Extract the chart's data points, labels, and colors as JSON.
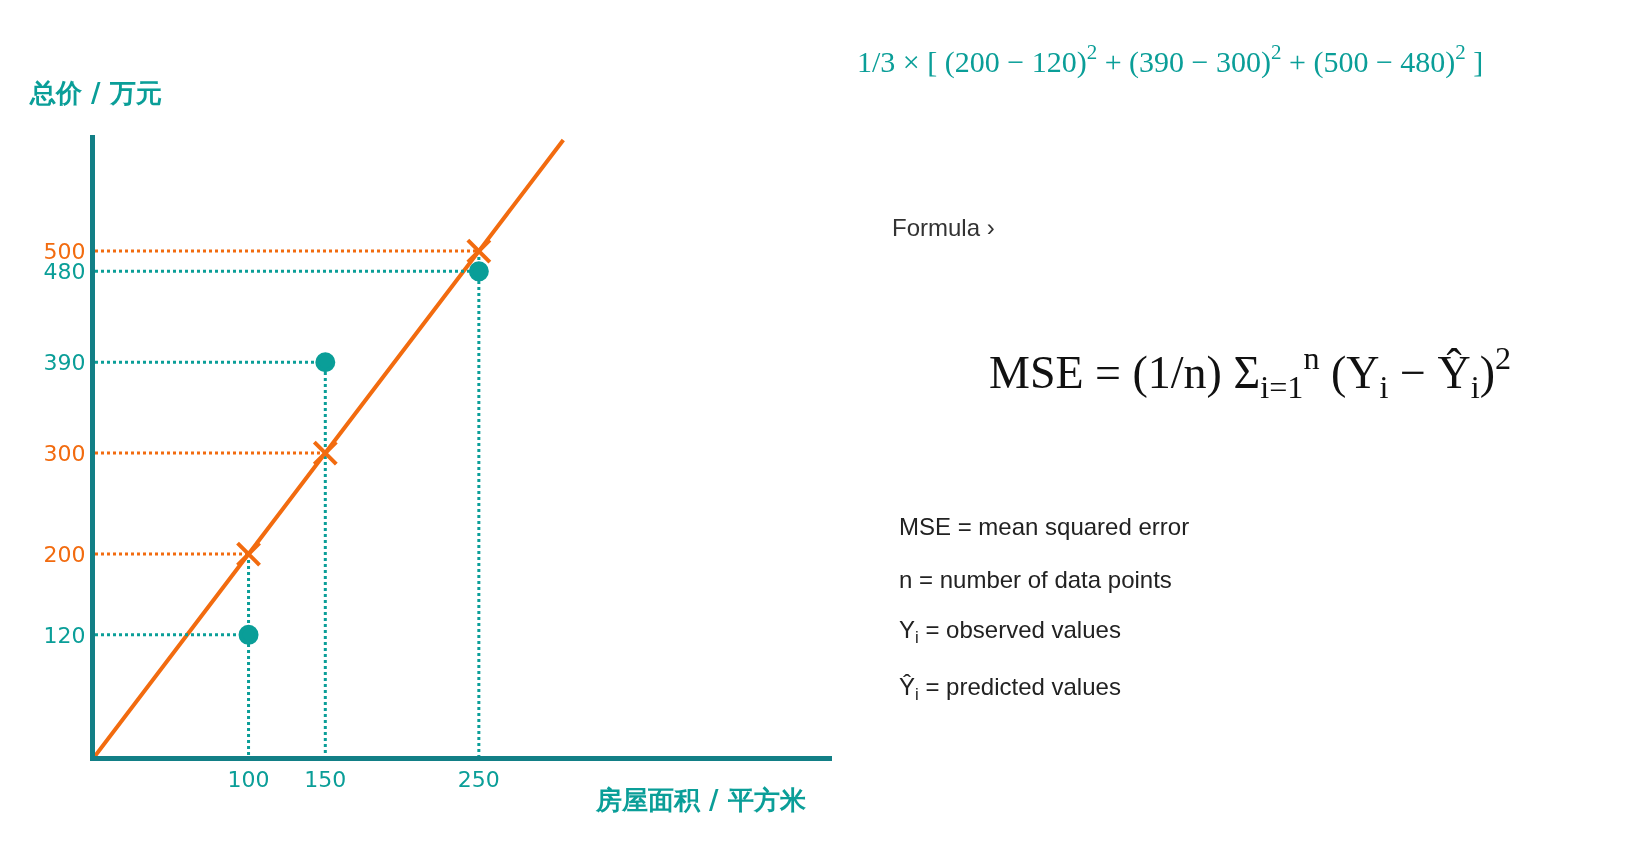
{
  "chart_data": {
    "type": "scatter",
    "xlabel": "房屋面积 / 平方米",
    "ylabel": "总价 / 万元",
    "xlim": [
      0,
      480
    ],
    "ylim": [
      0,
      615
    ],
    "xticks": [
      100,
      150,
      250
    ],
    "yticks": [
      120,
      200,
      300,
      390,
      480,
      500
    ],
    "grid": false,
    "series": [
      {
        "type": "line",
        "color": "#f26b0f",
        "line_style": "solid",
        "x": [
          0,
          100,
          150,
          250,
          305
        ],
        "values": [
          0,
          200,
          300,
          500,
          610
        ]
      },
      {
        "type": "line",
        "color": "#f26b0f",
        "line_style": "dotted",
        "x": [
          0,
          100,
          null,
          0,
          150,
          null,
          0,
          250
        ],
        "values": [
          200,
          200,
          null,
          300,
          300,
          null,
          500,
          500
        ]
      },
      {
        "type": "line",
        "color": "#0a9e98",
        "line_style": "dotted",
        "x": [
          0,
          100,
          null,
          100,
          100,
          null,
          0,
          150,
          150,
          null,
          0,
          250,
          null,
          250,
          250
        ],
        "values": [
          120,
          120,
          null,
          200,
          0,
          null,
          390,
          390,
          0,
          null,
          480,
          480,
          null,
          500,
          0
        ]
      },
      {
        "color": "#0a9e98",
        "marker": "circle",
        "x": [
          100,
          150,
          250
        ],
        "values": [
          120,
          390,
          480
        ]
      },
      {
        "color": "#f26b0f",
        "marker": "cross",
        "x": [
          100,
          150,
          250
        ],
        "values": [
          200,
          300,
          500
        ]
      }
    ],
    "annotations": [
      "1/3 × [ (200 − 120)$^{2}$ + (390 − 300)$^{2}$ + (500 − 480)$^{2}$ ]",
      "Formula ›",
      "MSE = (1/n) Σ$_{i=1}$$^{n}$ (Y$_{i}$ − Ŷ$_{i}$)$^{2}$",
      "MSE = mean squared error",
      "n = number of data points",
      "Y$_{i}$ = observed values",
      "Ŷ$_{i}$ = predicted values"
    ]
  }
}
